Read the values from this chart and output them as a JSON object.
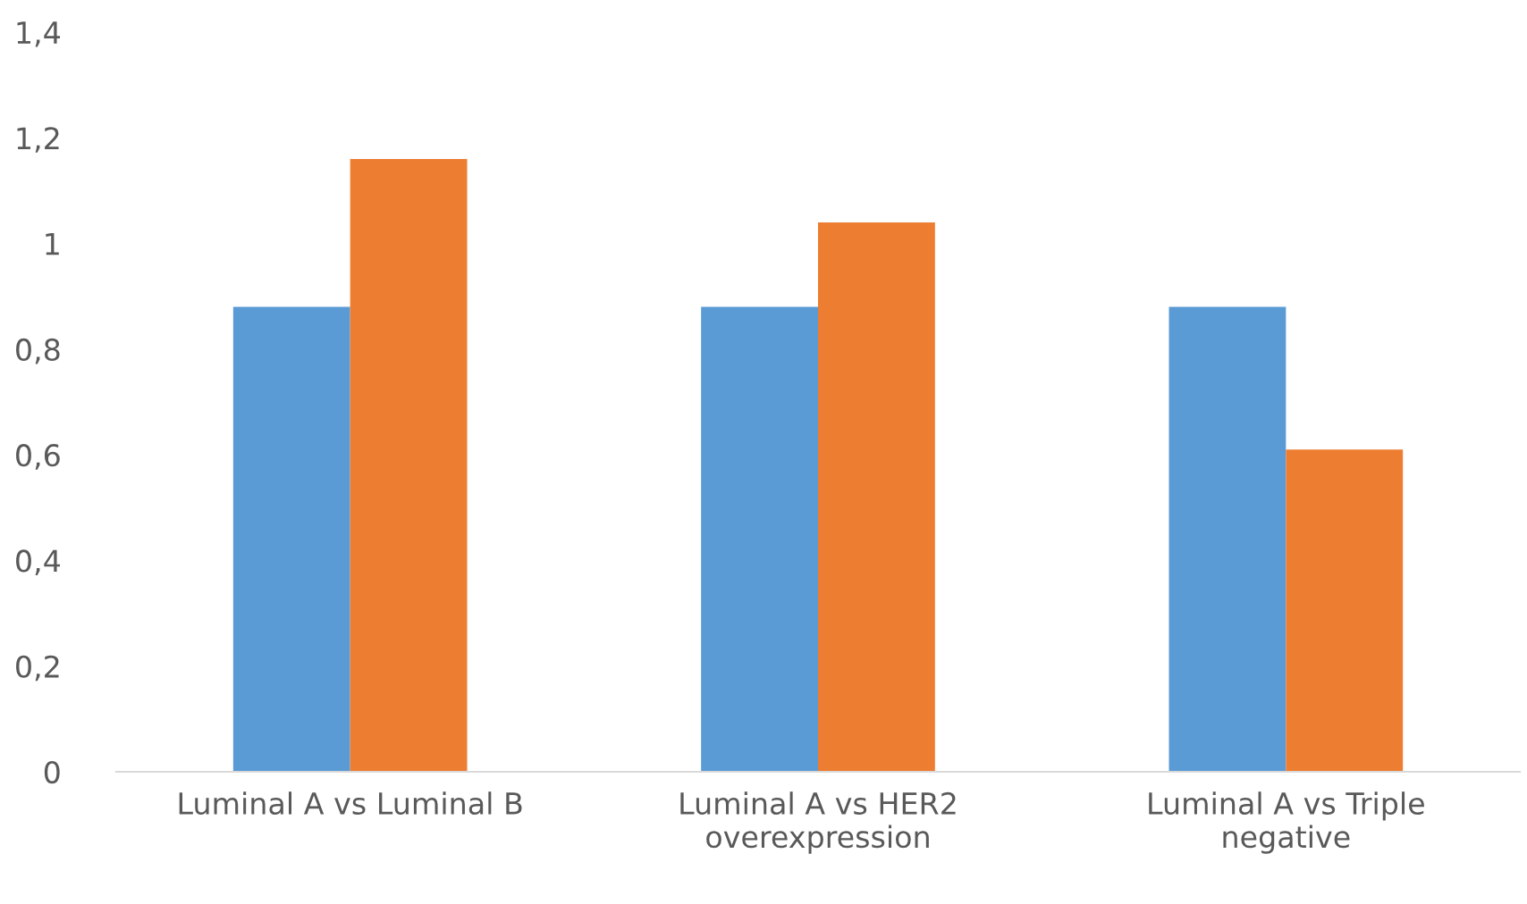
{
  "chart_data": {
    "type": "bar",
    "categories": [
      "Luminal A vs Luminal B",
      "Luminal A vs HER2\noverexpression",
      "Luminal A vs Triple\nnegative"
    ],
    "series": [
      {
        "color": "#5b9bd5",
        "values": [
          0.88,
          0.88,
          0.88
        ]
      },
      {
        "color": "#ed7d31",
        "values": [
          1.16,
          1.04,
          0.61
        ]
      }
    ],
    "ylim": [
      0,
      1.4
    ],
    "yticks": [
      {
        "value": 0,
        "label": "0"
      },
      {
        "value": 0.2,
        "label": "0,2"
      },
      {
        "value": 0.4,
        "label": "0,4"
      },
      {
        "value": 0.6,
        "label": "0,6"
      },
      {
        "value": 0.8,
        "label": "0,8"
      },
      {
        "value": 1,
        "label": "1"
      },
      {
        "value": 1.2,
        "label": "1,2"
      },
      {
        "value": 1.4,
        "label": "1,4"
      }
    ],
    "grid": false,
    "legend": false
  }
}
